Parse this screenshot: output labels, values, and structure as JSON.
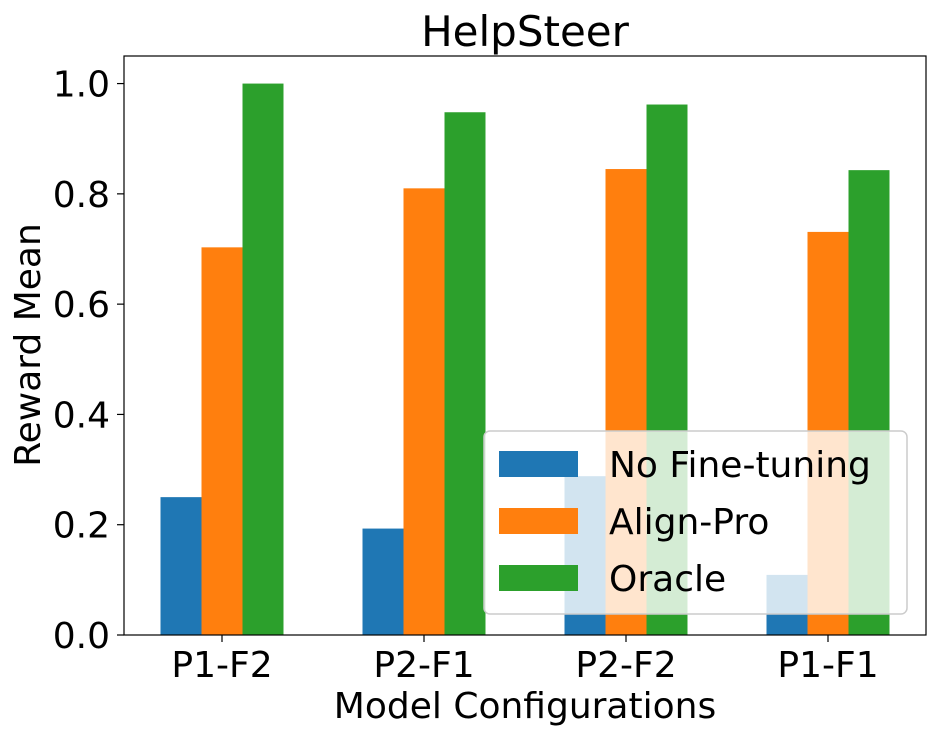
{
  "chart_data": {
    "type": "bar",
    "title": "HelpSteer",
    "xlabel": "Model Configurations",
    "ylabel": "Reward Mean",
    "categories": [
      "P1-F2",
      "P2-F1",
      "P2-F2",
      "P1-F1"
    ],
    "series": [
      {
        "name": "No Fine-tuning",
        "color": "#1f77b4",
        "values": [
          0.25,
          0.193,
          0.288,
          0.109
        ]
      },
      {
        "name": "Align-Pro",
        "color": "#ff7f0e",
        "values": [
          0.703,
          0.81,
          0.845,
          0.731
        ]
      },
      {
        "name": "Oracle",
        "color": "#2ca02c",
        "values": [
          1.0,
          0.948,
          0.962,
          0.843
        ]
      }
    ],
    "ylim": [
      0,
      1.05
    ],
    "yticks": [
      0.0,
      0.2,
      0.4,
      0.6,
      0.8,
      1.0
    ],
    "ytick_labels": [
      "0.0",
      "0.2",
      "0.4",
      "0.6",
      "0.8",
      "1.0"
    ],
    "grid": false,
    "legend_position": "lower-right"
  }
}
